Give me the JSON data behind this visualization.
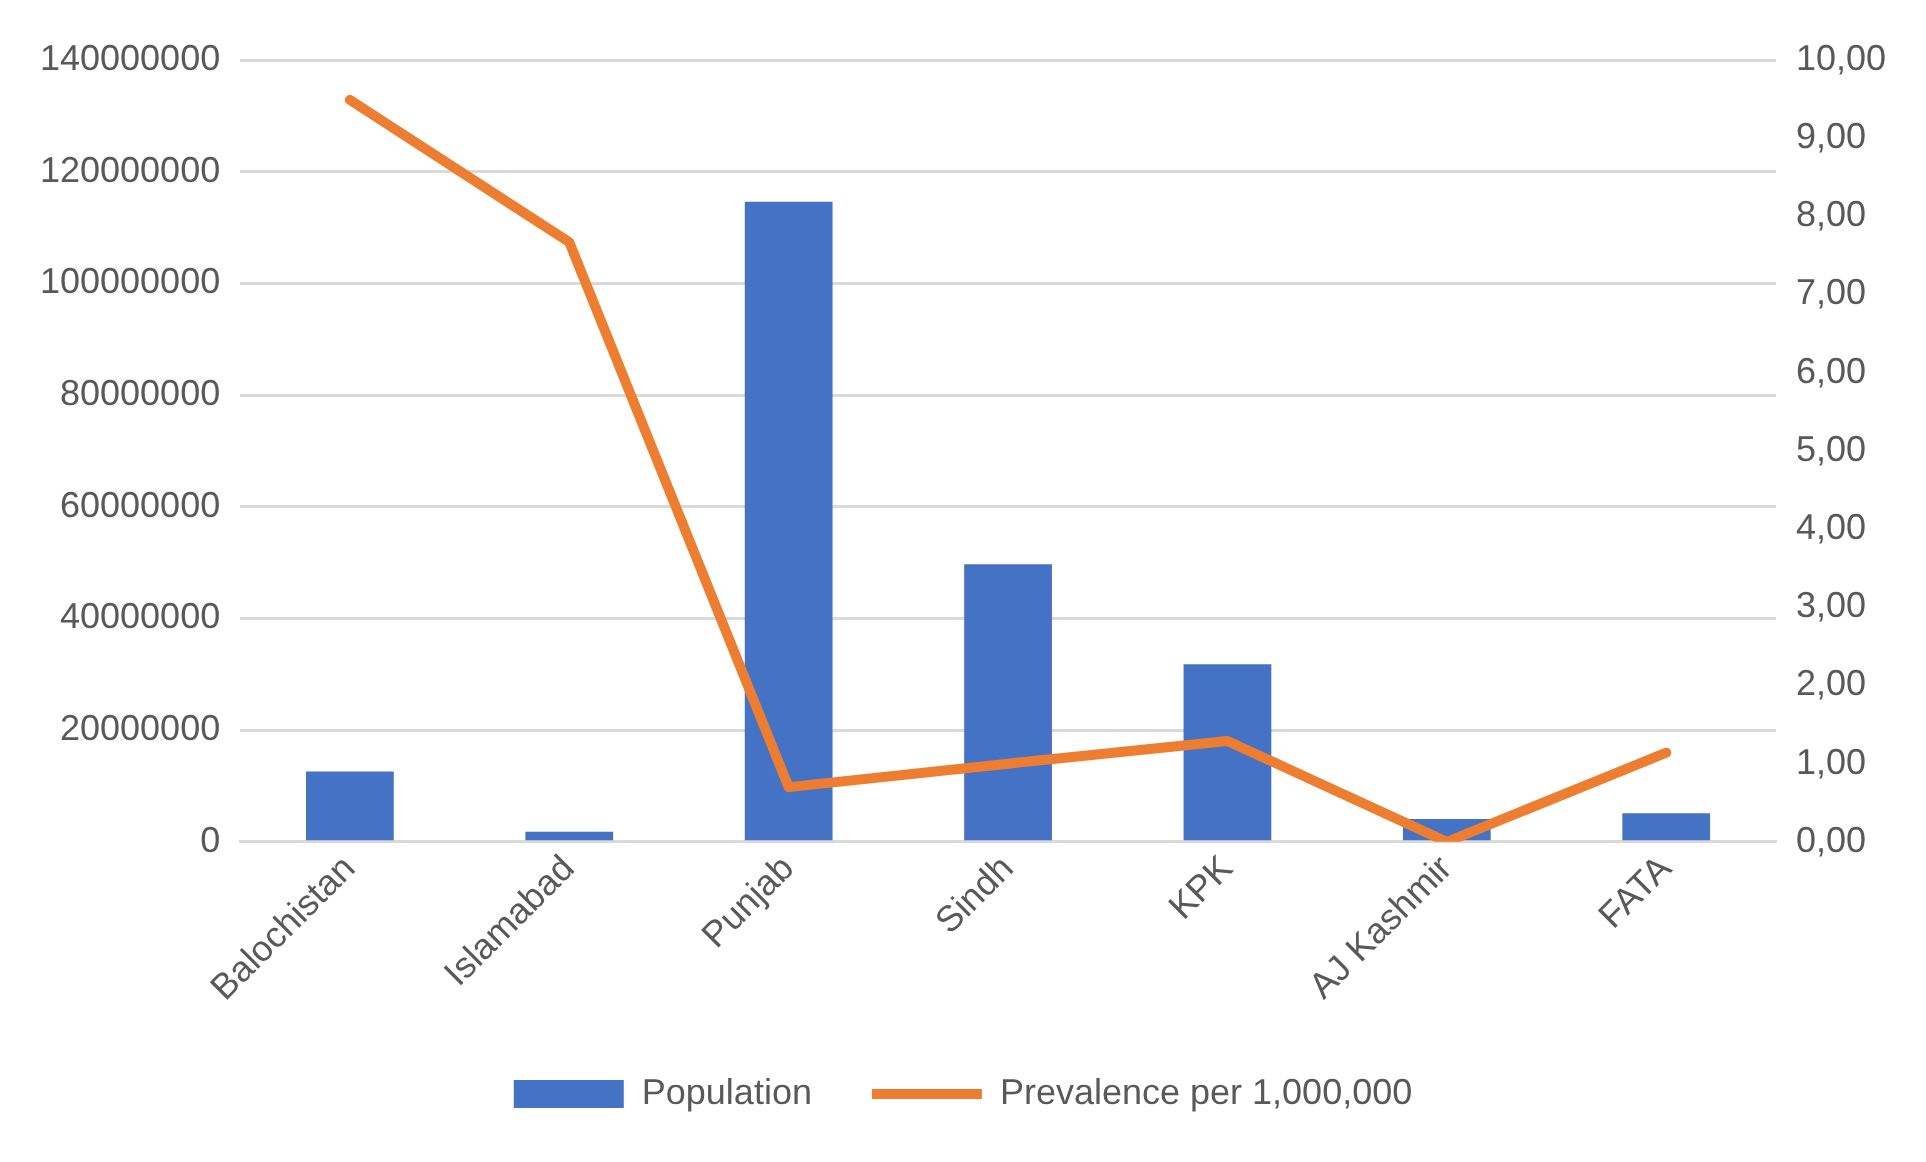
{
  "chart_data": {
    "type": "bar",
    "categories": [
      "Balochistan",
      "Islamabad",
      "Punjab",
      "Sindh",
      "KPK",
      "AJ Kashmir",
      "FATA"
    ],
    "series": [
      {
        "name": "Population",
        "color": "#4472c4",
        "values": [
          12600000,
          1800000,
          114600000,
          49700000,
          31800000,
          4100000,
          5100000
        ]
      },
      {
        "name": "Prevalence per 1,000,000",
        "type": "line",
        "axis": "y2",
        "color": "#ed7d31",
        "values": [
          9.49,
          7.67,
          0.7,
          1.0,
          1.29,
          0.0,
          1.14
        ]
      }
    ],
    "ylim": [
      0,
      140000000
    ],
    "yticks": [
      0,
      20000000,
      40000000,
      60000000,
      80000000,
      100000000,
      120000000,
      140000000
    ],
    "y2lim": [
      0,
      10
    ],
    "y2ticks": [
      {
        "value": 0,
        "label": "0,00"
      },
      {
        "value": 1,
        "label": "1,00"
      },
      {
        "value": 2,
        "label": "2,00"
      },
      {
        "value": 3,
        "label": "3,00"
      },
      {
        "value": 4,
        "label": "4,00"
      },
      {
        "value": 5,
        "label": "5,00"
      },
      {
        "value": 6,
        "label": "6,00"
      },
      {
        "value": 7,
        "label": "7,00"
      },
      {
        "value": 8,
        "label": "8,00"
      },
      {
        "value": 9,
        "label": "9,00"
      },
      {
        "value": 10,
        "label": "10,00"
      }
    ],
    "grid": "y",
    "legend": "bottom",
    "marker": "none"
  }
}
